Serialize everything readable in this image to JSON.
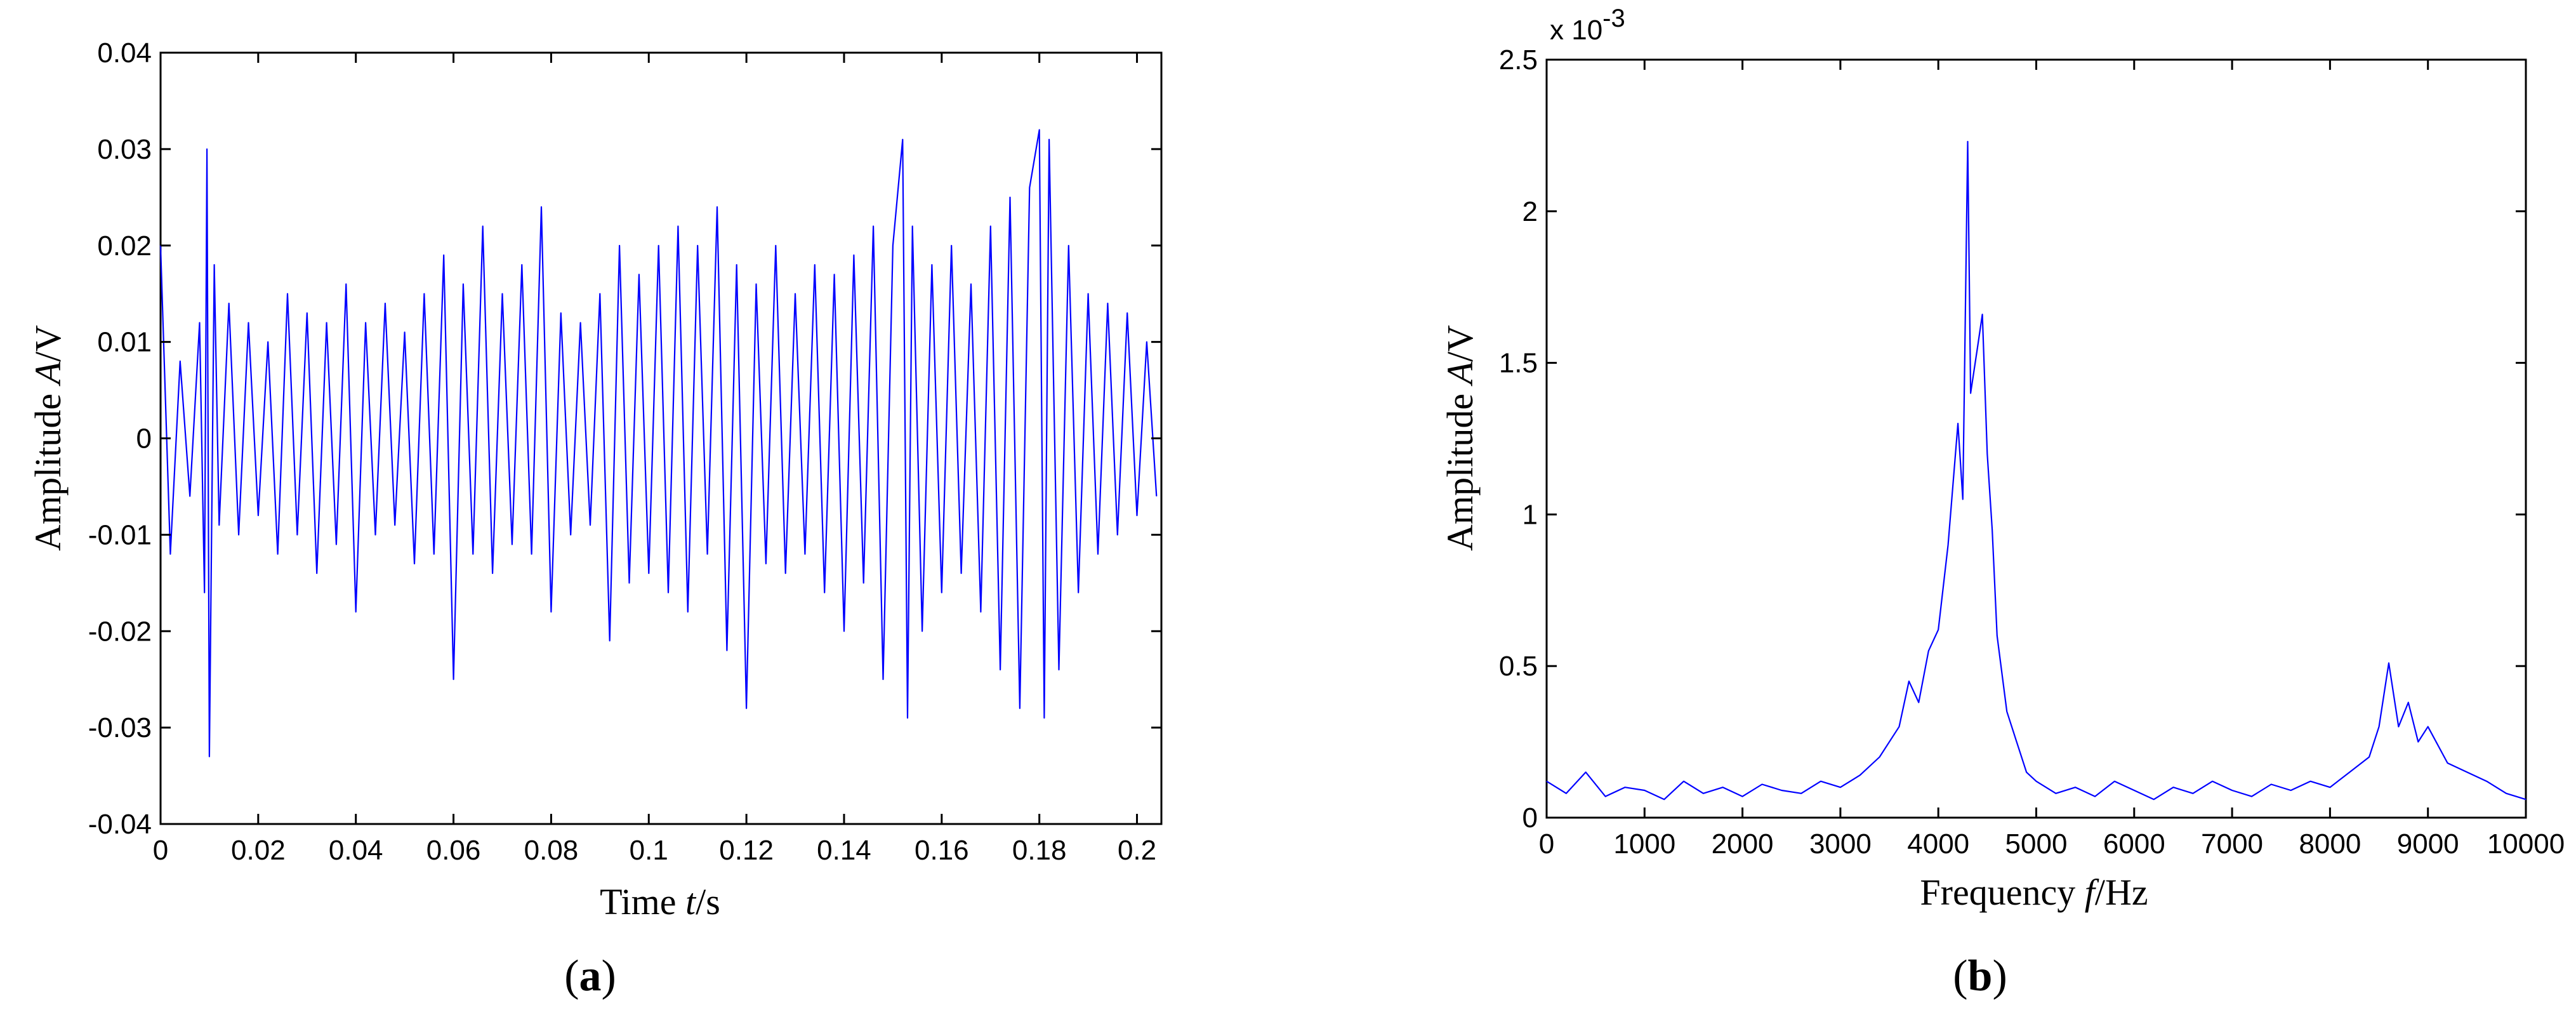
{
  "chart_data": [
    {
      "panel": "(a)",
      "panel_letter": "a",
      "type": "line",
      "title": "",
      "xlabel_pre": "Time ",
      "xlabel_var": "t",
      "xlabel_post": "/s",
      "ylabel_pre": "Amplitude ",
      "ylabel_var": "A",
      "ylabel_post": "/V",
      "xlim": [
        0,
        0.205
      ],
      "ylim": [
        -0.04,
        0.04
      ],
      "xticks": [
        "0",
        "0.02",
        "0.04",
        "0.06",
        "0.08",
        "0.1",
        "0.12",
        "0.14",
        "0.16",
        "0.18",
        "0.2"
      ],
      "xtick_values": [
        0,
        0.02,
        0.04,
        0.06,
        0.08,
        0.1,
        0.12,
        0.14,
        0.16,
        0.18,
        0.2
      ],
      "yticks": [
        "-0.04",
        "-0.03",
        "-0.02",
        "-0.01",
        "0",
        "0.01",
        "0.02",
        "0.03",
        "0.04"
      ],
      "ytick_values": [
        -0.04,
        -0.03,
        -0.02,
        -0.01,
        0,
        0.01,
        0.02,
        0.03,
        0.04
      ],
      "grid": false,
      "line_color": "#0000ff",
      "series": [
        {
          "x": [
            0.0,
            0.002,
            0.004,
            0.006,
            0.008,
            0.009,
            0.0095,
            0.01,
            0.011,
            0.012,
            0.014,
            0.016,
            0.018,
            0.02,
            0.022,
            0.024,
            0.026,
            0.028,
            0.03,
            0.032,
            0.034,
            0.036,
            0.038,
            0.04,
            0.042,
            0.044,
            0.046,
            0.048,
            0.05,
            0.052,
            0.054,
            0.056,
            0.058,
            0.06,
            0.062,
            0.064,
            0.066,
            0.068,
            0.07,
            0.072,
            0.074,
            0.076,
            0.078,
            0.08,
            0.082,
            0.084,
            0.086,
            0.088,
            0.09,
            0.092,
            0.094,
            0.096,
            0.098,
            0.1,
            0.102,
            0.104,
            0.106,
            0.108,
            0.11,
            0.112,
            0.114,
            0.116,
            0.118,
            0.12,
            0.122,
            0.124,
            0.126,
            0.128,
            0.13,
            0.132,
            0.134,
            0.136,
            0.138,
            0.14,
            0.142,
            0.144,
            0.146,
            0.148,
            0.15,
            0.152,
            0.153,
            0.154,
            0.156,
            0.158,
            0.16,
            0.162,
            0.164,
            0.166,
            0.168,
            0.17,
            0.172,
            0.174,
            0.176,
            0.178,
            0.18,
            0.181,
            0.182,
            0.184,
            0.186,
            0.188,
            0.19,
            0.192,
            0.194,
            0.196,
            0.198,
            0.2,
            0.202,
            0.204
          ],
          "y": [
            0.02,
            -0.012,
            0.008,
            -0.006,
            0.012,
            -0.016,
            0.03,
            -0.033,
            0.018,
            -0.009,
            0.014,
            -0.01,
            0.012,
            -0.008,
            0.01,
            -0.012,
            0.015,
            -0.01,
            0.013,
            -0.014,
            0.012,
            -0.011,
            0.016,
            -0.018,
            0.012,
            -0.01,
            0.014,
            -0.009,
            0.011,
            -0.013,
            0.015,
            -0.012,
            0.019,
            -0.025,
            0.016,
            -0.012,
            0.022,
            -0.014,
            0.015,
            -0.011,
            0.018,
            -0.012,
            0.024,
            -0.018,
            0.013,
            -0.01,
            0.012,
            -0.009,
            0.015,
            -0.021,
            0.02,
            -0.015,
            0.017,
            -0.014,
            0.02,
            -0.016,
            0.022,
            -0.018,
            0.02,
            -0.012,
            0.024,
            -0.022,
            0.018,
            -0.028,
            0.016,
            -0.013,
            0.02,
            -0.014,
            0.015,
            -0.012,
            0.018,
            -0.016,
            0.017,
            -0.02,
            0.019,
            -0.015,
            0.022,
            -0.025,
            0.02,
            0.031,
            -0.029,
            0.022,
            -0.02,
            0.018,
            -0.016,
            0.02,
            -0.014,
            0.016,
            -0.018,
            0.022,
            -0.024,
            0.025,
            -0.028,
            0.026,
            0.032,
            -0.029,
            0.031,
            -0.024,
            0.02,
            -0.016,
            0.015,
            -0.012,
            0.014,
            -0.01,
            0.013,
            -0.008,
            0.01,
            -0.006
          ]
        }
      ]
    },
    {
      "panel": "(b)",
      "panel_letter": "b",
      "type": "line",
      "title": "",
      "xlabel_pre": "Frequency ",
      "xlabel_var": "f",
      "xlabel_post": "/Hz",
      "ylabel_pre": "Amplitude ",
      "ylabel_var": "A",
      "ylabel_post": "/V",
      "y_multiplier_base": "x 10",
      "y_multiplier_exp": "-3",
      "xlim": [
        0,
        10000
      ],
      "ylim": [
        0,
        2.5
      ],
      "xticks": [
        "0",
        "1000",
        "2000",
        "3000",
        "4000",
        "5000",
        "6000",
        "7000",
        "8000",
        "9000",
        "10000"
      ],
      "xtick_values": [
        0,
        1000,
        2000,
        3000,
        4000,
        5000,
        6000,
        7000,
        8000,
        9000,
        10000
      ],
      "yticks": [
        "0",
        "0.5",
        "1",
        "1.5",
        "2",
        "2.5"
      ],
      "ytick_values": [
        0,
        0.5,
        1,
        1.5,
        2,
        2.5
      ],
      "grid": false,
      "line_color": "#0000ff",
      "series": [
        {
          "x": [
            0,
            200,
            400,
            600,
            800,
            1000,
            1200,
            1400,
            1600,
            1800,
            2000,
            2200,
            2400,
            2600,
            2800,
            3000,
            3200,
            3400,
            3600,
            3700,
            3800,
            3900,
            4000,
            4100,
            4200,
            4250,
            4300,
            4330,
            4400,
            4450,
            4500,
            4550,
            4600,
            4700,
            4800,
            4900,
            5000,
            5200,
            5400,
            5600,
            5800,
            6000,
            6200,
            6400,
            6600,
            6800,
            7000,
            7200,
            7400,
            7600,
            7800,
            8000,
            8200,
            8400,
            8500,
            8600,
            8700,
            8800,
            8900,
            9000,
            9200,
            9400,
            9600,
            9800,
            10000
          ],
          "y": [
            0.12,
            0.08,
            0.15,
            0.07,
            0.1,
            0.09,
            0.06,
            0.12,
            0.08,
            0.1,
            0.07,
            0.11,
            0.09,
            0.08,
            0.12,
            0.1,
            0.14,
            0.2,
            0.3,
            0.45,
            0.38,
            0.55,
            0.62,
            0.9,
            1.3,
            1.05,
            2.23,
            1.4,
            1.55,
            1.66,
            1.2,
            0.95,
            0.6,
            0.35,
            0.25,
            0.15,
            0.12,
            0.08,
            0.1,
            0.07,
            0.12,
            0.09,
            0.06,
            0.1,
            0.08,
            0.12,
            0.09,
            0.07,
            0.11,
            0.09,
            0.12,
            0.1,
            0.15,
            0.2,
            0.3,
            0.51,
            0.3,
            0.38,
            0.25,
            0.3,
            0.18,
            0.15,
            0.12,
            0.08,
            0.06
          ]
        }
      ]
    }
  ]
}
